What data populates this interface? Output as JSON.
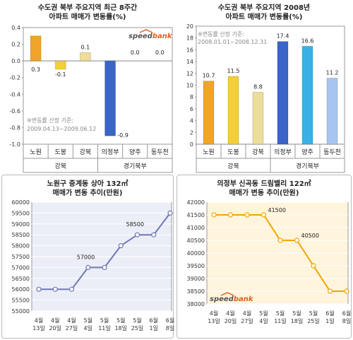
{
  "chart_data": [
    {
      "id": "c1",
      "type": "bar",
      "title": "수도권 북부 주요지역 최근 8주간",
      "subtitle": "아파트 매매가 변동률(%)",
      "categories": [
        "노원",
        "도봉",
        "강북",
        "의정부",
        "양주",
        "동두천"
      ],
      "groups": [
        {
          "label": "강북",
          "span": [
            0,
            2
          ]
        },
        {
          "label": "경기북부",
          "span": [
            3,
            5
          ]
        }
      ],
      "values": [
        0.3,
        -0.1,
        0.1,
        -0.9,
        0.0,
        0.0
      ],
      "value_labels": [
        "0.3",
        "-0.1",
        "0.1",
        "-0.9",
        "0.0",
        "0.0"
      ],
      "colors": [
        "#f0a52a",
        "#f3cf39",
        "#eddc9a",
        "#3a64c8",
        "#3a64c8",
        "#3a64c8"
      ],
      "yticks": [
        "0.4",
        "0.2",
        "0.0",
        "-0.2",
        "-0.4",
        "-0.6",
        "-0.8",
        "-1.0"
      ],
      "ylim": [
        -1.0,
        0.4
      ],
      "note": [
        "※변동률 산정 기준:",
        "2009.04.13~2009.06.12"
      ],
      "logo": "speedbank"
    },
    {
      "id": "c2",
      "type": "bar",
      "title": "수도권 북부 주요지역 2008년",
      "subtitle": "아파트 매매가 변동률(%)",
      "categories": [
        "노원",
        "도봉",
        "강북",
        "의정부",
        "양주",
        "동두천"
      ],
      "groups": [
        {
          "label": "강북",
          "span": [
            0,
            2
          ]
        },
        {
          "label": "경기북부",
          "span": [
            3,
            5
          ]
        }
      ],
      "values": [
        10.7,
        11.5,
        8.8,
        17.4,
        16.6,
        11.2
      ],
      "value_labels": [
        "10.7",
        "11.5",
        "8.8",
        "17.4",
        "16.6",
        "11.2"
      ],
      "colors": [
        "#f0a52a",
        "#f3cf39",
        "#eddc9a",
        "#3a64c8",
        "#3ab0e8",
        "#a8c4f0"
      ],
      "yticks": [
        "20",
        "18",
        "16",
        "14",
        "12",
        "10",
        "8",
        "6",
        "4",
        "2",
        "0"
      ],
      "ylim": [
        0,
        20
      ],
      "note": [
        "※변동률 산정 기준:",
        "2008.01.01~2008.12.31"
      ]
    },
    {
      "id": "c3",
      "type": "line",
      "title": "노원구 중계동 상아 132㎡",
      "subtitle": "매매가 변동 추이(만원)",
      "x": [
        [
          "4월",
          "13일"
        ],
        [
          "4월",
          "20일"
        ],
        [
          "4월",
          "27일"
        ],
        [
          "5월",
          "4일"
        ],
        [
          "5월",
          "11일"
        ],
        [
          "5월",
          "18일"
        ],
        [
          "5월",
          "25일"
        ],
        [
          "6월",
          "1일"
        ],
        [
          "6월",
          "8일"
        ]
      ],
      "values": [
        56000,
        56000,
        56000,
        57000,
        57000,
        58000,
        58500,
        58500,
        59500
      ],
      "annotations": [
        {
          "index": 3,
          "text": "57000"
        },
        {
          "index": 6,
          "text": "58500"
        }
      ],
      "yticks": [
        "60000",
        "59500",
        "59000",
        "58500",
        "58000",
        "57500",
        "57000",
        "56500",
        "56000",
        "55500",
        "55000"
      ],
      "ylim": [
        55000,
        60000
      ],
      "color": "#6f78b8",
      "background": "#eceef7"
    },
    {
      "id": "c4",
      "type": "line",
      "title": "의정부 신곡동 드림밸리 122㎡",
      "subtitle": "매매가 변동 추이(만원)",
      "x": [
        [
          "4월",
          "13일"
        ],
        [
          "4월",
          "20일"
        ],
        [
          "4월",
          "27일"
        ],
        [
          "5월",
          "4일"
        ],
        [
          "5월",
          "11일"
        ],
        [
          "5월",
          "18일"
        ],
        [
          "5월",
          "25일"
        ],
        [
          "6월",
          "1일"
        ],
        [
          "6월",
          "8일"
        ]
      ],
      "values": [
        41500,
        41500,
        41500,
        41500,
        40500,
        40500,
        39500,
        38500,
        38500
      ],
      "annotations": [
        {
          "index": 3,
          "text": "41500"
        },
        {
          "index": 5,
          "text": "40500"
        }
      ],
      "yticks": [
        "42000",
        "41500",
        "41000",
        "40500",
        "40000",
        "39500",
        "39000",
        "38500",
        "38000"
      ],
      "ylim": [
        38000,
        42000
      ],
      "color": "#f0a500",
      "background": "#fff4dc",
      "logo": "speedbank"
    }
  ]
}
